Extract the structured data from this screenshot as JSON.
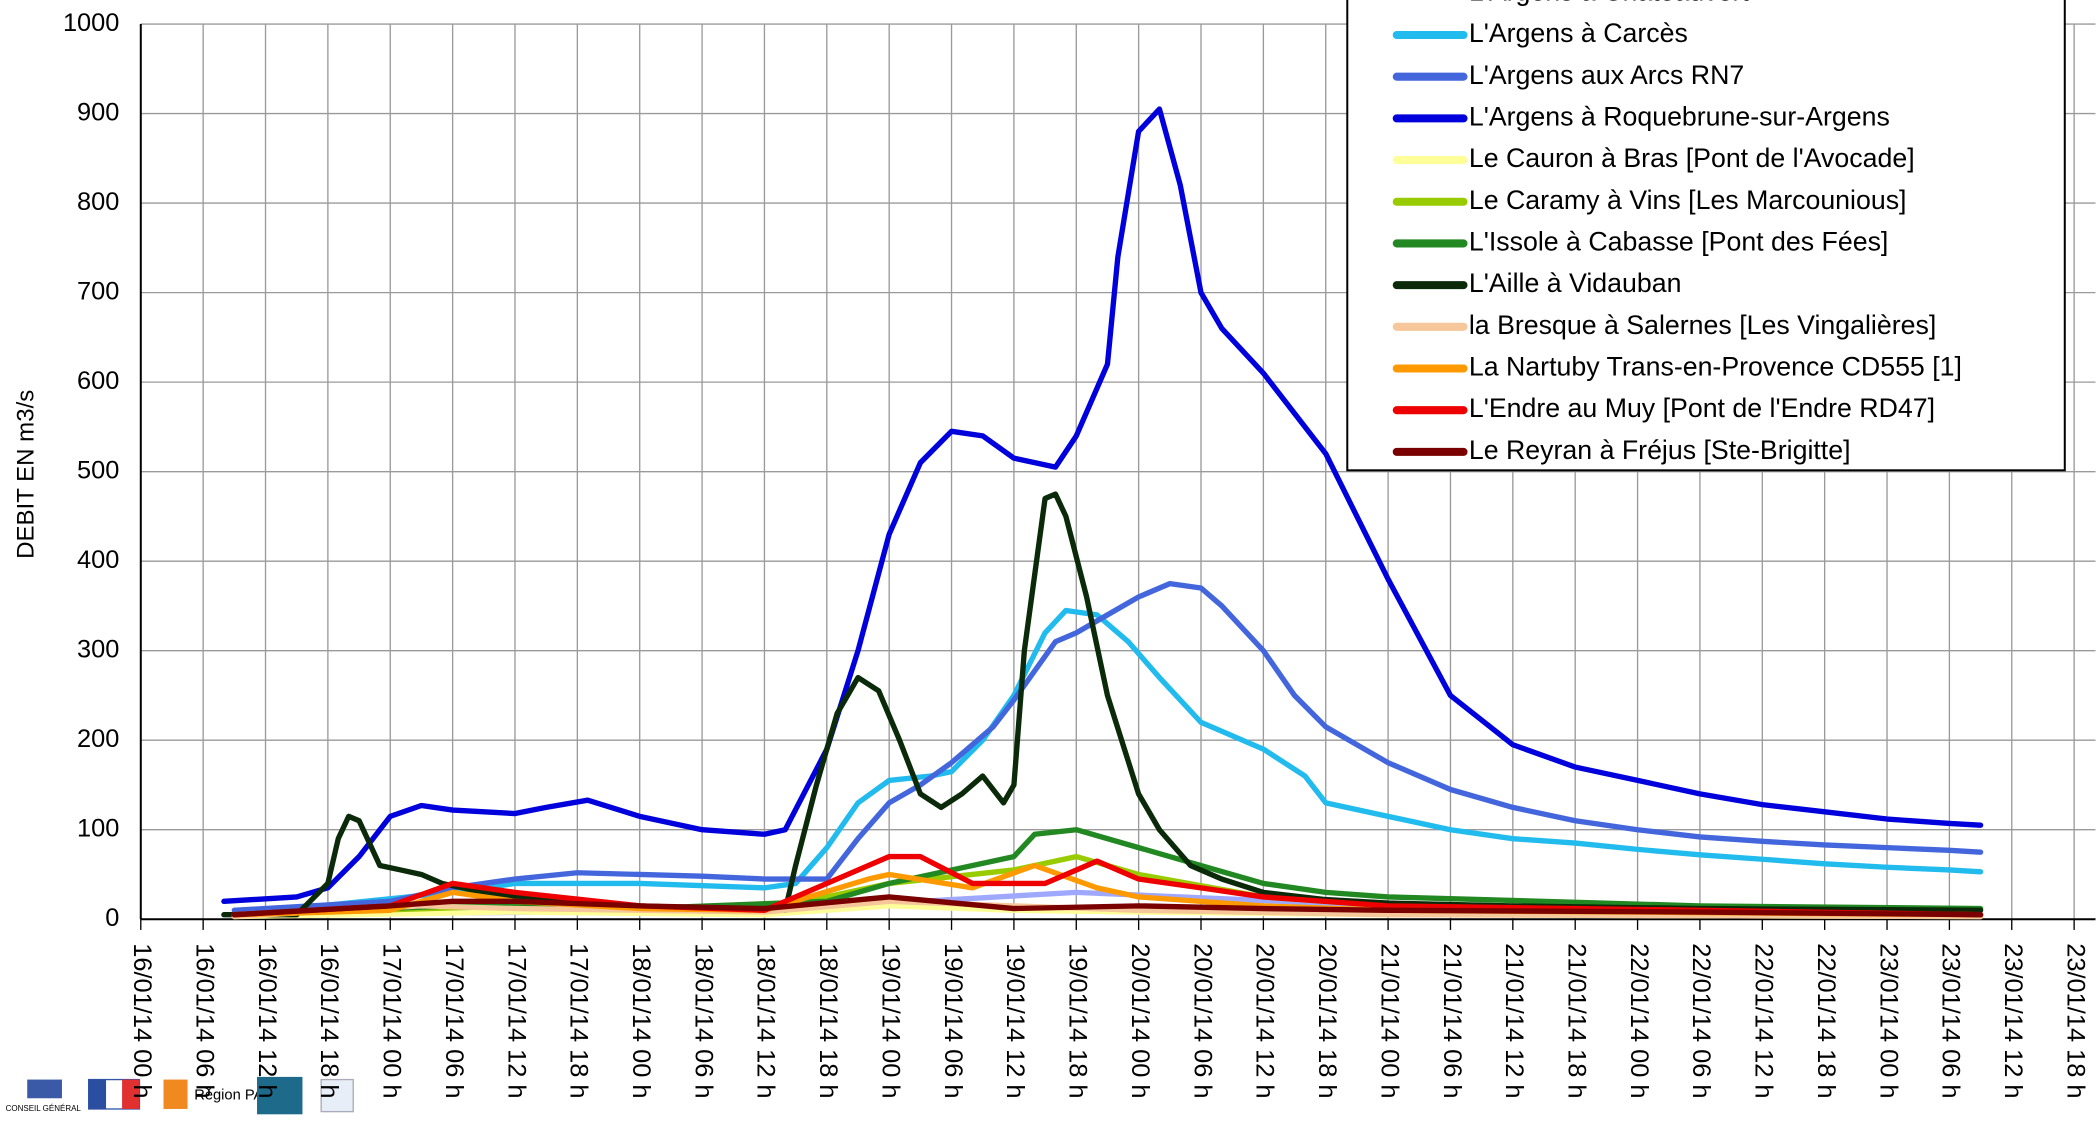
{
  "chart_data": {
    "type": "line",
    "y_label": "DEBIT EN m3/s",
    "xlim": [
      "16/01/14 00 h",
      "23/01/14 18 h"
    ],
    "xticks": [
      "16/01/14 00 h",
      "16/01/14 06 h",
      "16/01/14 12 h",
      "16/01/14 18 h",
      "17/01/14 00 h",
      "17/01/14 06 h",
      "17/01/14 12 h",
      "17/01/14 18 h",
      "18/01/14 00 h",
      "18/01/14 06 h",
      "18/01/14 12 h",
      "18/01/14 18 h",
      "19/01/14 00 h",
      "19/01/14 06 h",
      "19/01/14 12 h",
      "19/01/14 18 h",
      "20/01/14 00 h",
      "20/01/14 06 h",
      "20/01/14 12 h",
      "20/01/14 18 h",
      "21/01/14 00 h",
      "21/01/14 06 h",
      "21/01/14 12 h",
      "21/01/14 18 h",
      "22/01/14 00 h",
      "22/01/14 06 h",
      "22/01/14 12 h",
      "22/01/14 18 h",
      "23/01/14 00 h",
      "23/01/14 06 h",
      "23/01/14 12 h",
      "23/01/14 18 h"
    ],
    "ylim": [
      0,
      1000
    ],
    "yticks": [
      0,
      100,
      200,
      300,
      400,
      500,
      600,
      700,
      800,
      900,
      1000
    ],
    "grid": true,
    "legend": "top-right",
    "series": [
      {
        "name": "L'Argens à Châteauvert",
        "color": "#9fa8ff",
        "x": [
          "16/01/14 09 h",
          "18/01/14 12 h",
          "19/01/14 18 h",
          "21/01/14 00 h",
          "23/01/14 09 h"
        ],
        "values": [
          5,
          10,
          30,
          15,
          5
        ]
      },
      {
        "name": "L'Argens à Carcès",
        "color": "#22bbee",
        "x": [
          "16/01/14 09 h",
          "17/01/14 06 h",
          "17/01/14 12 h",
          "18/01/14 00 h",
          "18/01/14 12 h",
          "18/01/14 15 h",
          "18/01/14 18 h",
          "18/01/14 21 h",
          "19/01/14 00 h",
          "19/01/14 04 h",
          "19/01/14 06 h",
          "19/01/14 09 h",
          "19/01/14 12 h",
          "19/01/14 15 h",
          "19/01/14 17 h",
          "19/01/14 20 h",
          "19/01/14 23 h",
          "20/01/14 02 h",
          "20/01/14 06 h",
          "20/01/14 12 h",
          "20/01/14 16 h",
          "20/01/14 18 h",
          "21/01/14 00 h",
          "21/01/14 06 h",
          "21/01/14 12 h",
          "21/01/14 18 h",
          "22/01/14 00 h",
          "22/01/14 06 h",
          "22/01/14 12 h",
          "22/01/14 18 h",
          "23/01/14 00 h",
          "23/01/14 06 h",
          "23/01/14 09 h"
        ],
        "values": [
          5,
          30,
          40,
          40,
          35,
          40,
          80,
          130,
          155,
          160,
          165,
          200,
          250,
          320,
          345,
          340,
          310,
          270,
          220,
          190,
          160,
          130,
          115,
          100,
          90,
          85,
          78,
          72,
          67,
          62,
          58,
          55,
          53
        ]
      },
      {
        "name": "L'Argens aux Arcs RN7",
        "color": "#4466dd",
        "x": [
          "16/01/14 09 h",
          "17/01/14 00 h",
          "17/01/14 06 h",
          "17/01/14 12 h",
          "17/01/14 18 h",
          "18/01/14 00 h",
          "18/01/14 06 h",
          "18/01/14 12 h",
          "18/01/14 15 h",
          "18/01/14 18 h",
          "18/01/14 21 h",
          "19/01/14 00 h",
          "19/01/14 03 h",
          "19/01/14 06 h",
          "19/01/14 10 h",
          "19/01/14 12 h",
          "19/01/14 16 h",
          "19/01/14 18 h",
          "19/01/14 21 h",
          "20/01/14 00 h",
          "20/01/14 03 h",
          "20/01/14 06 h",
          "20/01/14 08 h",
          "20/01/14 12 h",
          "20/01/14 15 h",
          "20/01/14 18 h",
          "21/01/14 00 h",
          "21/01/14 06 h",
          "21/01/14 12 h",
          "21/01/14 18 h",
          "22/01/14 00 h",
          "22/01/14 06 h",
          "22/01/14 12 h",
          "22/01/14 18 h",
          "23/01/14 00 h",
          "23/01/14 06 h",
          "23/01/14 09 h"
        ],
        "values": [
          10,
          20,
          35,
          45,
          52,
          50,
          48,
          45,
          45,
          45,
          90,
          130,
          150,
          175,
          215,
          245,
          310,
          320,
          340,
          360,
          375,
          370,
          350,
          300,
          250,
          215,
          175,
          145,
          125,
          110,
          100,
          92,
          87,
          83,
          80,
          77,
          75
        ]
      },
      {
        "name": "L'Argens à Roquebrune-sur-Argens",
        "color": "#0000dd",
        "x": [
          "16/01/14 08 h",
          "16/01/14 15 h",
          "16/01/14 18 h",
          "16/01/14 21 h",
          "17/01/14 00 h",
          "17/01/14 03 h",
          "17/01/14 06 h",
          "17/01/14 12 h",
          "17/01/14 15 h",
          "17/01/14 19 h",
          "18/01/14 00 h",
          "18/01/14 06 h",
          "18/01/14 12 h",
          "18/01/14 14 h",
          "18/01/14 18 h",
          "18/01/14 21 h",
          "19/01/14 00 h",
          "19/01/14 03 h",
          "19/01/14 06 h",
          "19/01/14 09 h",
          "19/01/14 12 h",
          "19/01/14 16 h",
          "19/01/14 18 h",
          "19/01/14 21 h",
          "19/01/14 22 h",
          "20/01/14 00 h",
          "20/01/14 02 h",
          "20/01/14 04 h",
          "20/01/14 06 h",
          "20/01/14 08 h",
          "20/01/14 12 h",
          "20/01/14 18 h",
          "21/01/14 00 h",
          "21/01/14 06 h",
          "21/01/14 12 h",
          "21/01/14 18 h",
          "22/01/14 00 h",
          "22/01/14 06 h",
          "22/01/14 12 h",
          "22/01/14 18 h",
          "23/01/14 00 h",
          "23/01/14 06 h",
          "23/01/14 09 h"
        ],
        "values": [
          20,
          25,
          35,
          70,
          115,
          127,
          122,
          118,
          125,
          133,
          115,
          100,
          95,
          100,
          190,
          300,
          430,
          510,
          545,
          540,
          515,
          505,
          540,
          620,
          740,
          880,
          905,
          820,
          700,
          660,
          610,
          520,
          380,
          250,
          195,
          170,
          155,
          140,
          128,
          120,
          112,
          107,
          105
        ]
      },
      {
        "name": "Le Cauron à Bras [Pont de l'Avocade]",
        "color": "#ffff99",
        "x": [
          "16/01/14 09 h",
          "17/01/14 12 h",
          "18/01/14 12 h",
          "19/01/14 00 h",
          "19/01/14 12 h",
          "20/01/14 00 h",
          "21/01/14 00 h",
          "23/01/14 09 h"
        ],
        "values": [
          3,
          8,
          5,
          15,
          10,
          8,
          5,
          3
        ]
      },
      {
        "name": "Le Caramy à Vins [Les Marcounious]",
        "color": "#99cc00",
        "x": [
          "16/01/14 09 h",
          "17/01/14 12 h",
          "18/01/14 12 h",
          "19/01/14 00 h",
          "19/01/14 12 h",
          "19/01/14 18 h",
          "20/01/14 00 h",
          "20/01/14 12 h",
          "21/01/14 00 h",
          "22/01/14 06 h",
          "23/01/14 09 h"
        ],
        "values": [
          5,
          15,
          10,
          40,
          55,
          70,
          50,
          25,
          15,
          8,
          5
        ]
      },
      {
        "name": "L'Issole à Cabasse [Pont des Fées]",
        "color": "#228822",
        "x": [
          "16/01/14 09 h",
          "17/01/14 06 h",
          "18/01/14 00 h",
          "18/01/14 18 h",
          "19/01/14 00 h",
          "19/01/14 12 h",
          "19/01/14 14 h",
          "19/01/14 18 h",
          "20/01/14 00 h",
          "20/01/14 06 h",
          "20/01/14 12 h",
          "20/01/14 18 h",
          "21/01/14 00 h",
          "22/01/14 06 h",
          "23/01/14 09 h"
        ],
        "values": [
          5,
          15,
          12,
          20,
          40,
          70,
          95,
          100,
          80,
          60,
          40,
          30,
          25,
          15,
          12
        ]
      },
      {
        "name": "L'Aille à Vidauban",
        "color": "#0a2a0a",
        "x": [
          "16/01/14 08 h",
          "16/01/14 15 h",
          "16/01/14 18 h",
          "16/01/14 19 h",
          "16/01/14 20 h",
          "16/01/14 21 h",
          "16/01/14 23 h",
          "17/01/14 01 h",
          "17/01/14 03 h",
          "17/01/14 05 h",
          "17/01/14 09 h",
          "17/01/14 12 h",
          "18/01/14 00 h",
          "18/01/14 12 h",
          "18/01/14 14 h",
          "18/01/14 15 h",
          "18/01/14 17 h",
          "18/01/14 19 h",
          "18/01/14 21 h",
          "18/01/14 23 h",
          "19/01/14 01 h",
          "19/01/14 03 h",
          "19/01/14 05 h",
          "19/01/14 07 h",
          "19/01/14 09 h",
          "19/01/14 11 h",
          "19/01/14 12 h",
          "19/01/14 13 h",
          "19/01/14 15 h",
          "19/01/14 16 h",
          "19/01/14 17 h",
          "19/01/14 19 h",
          "19/01/14 21 h",
          "20/01/14 00 h",
          "20/01/14 02 h",
          "20/01/14 05 h",
          "20/01/14 08 h",
          "20/01/14 12 h",
          "20/01/14 18 h",
          "21/01/14 00 h",
          "21/01/14 12 h",
          "22/01/14 06 h",
          "23/01/14 09 h"
        ],
        "values": [
          5,
          5,
          40,
          90,
          115,
          110,
          60,
          55,
          50,
          40,
          30,
          25,
          15,
          10,
          10,
          60,
          150,
          230,
          270,
          255,
          200,
          140,
          125,
          140,
          160,
          130,
          150,
          300,
          470,
          475,
          450,
          360,
          250,
          140,
          100,
          60,
          45,
          30,
          22,
          18,
          15,
          12,
          10
        ]
      },
      {
        "name": "la Bresque à Salernes [Les Vingalières]",
        "color": "#f5c79a",
        "x": [
          "16/01/14 09 h",
          "17/01/14 03 h",
          "17/01/14 12 h",
          "18/01/14 12 h",
          "19/01/14 00 h",
          "19/01/14 12 h",
          "20/01/14 00 h",
          "21/01/14 00 h",
          "23/01/14 09 h"
        ],
        "values": [
          3,
          15,
          12,
          8,
          20,
          15,
          10,
          5,
          3
        ]
      },
      {
        "name": "La Nartuby Trans-en-Provence CD555 [1]",
        "color": "#ff9900",
        "x": [
          "16/01/14 09 h",
          "17/01/14 00 h",
          "17/01/14 06 h",
          "17/01/14 12 h",
          "18/01/14 00 h",
          "18/01/14 12 h",
          "18/01/14 22 h",
          "19/01/14 00 h",
          "19/01/14 08 h",
          "19/01/14 14 h",
          "19/01/14 20 h",
          "20/01/14 00 h",
          "20/01/14 12 h",
          "21/01/14 00 h",
          "23/01/14 09 h"
        ],
        "values": [
          5,
          10,
          30,
          20,
          12,
          10,
          45,
          50,
          35,
          60,
          35,
          25,
          15,
          10,
          5
        ]
      },
      {
        "name": "L'Endre au Muy [Pont de l'Endre RD47]",
        "color": "#ee0000",
        "x": [
          "16/01/14 09 h",
          "17/01/14 00 h",
          "17/01/14 06 h",
          "17/01/14 12 h",
          "18/01/14 00 h",
          "18/01/14 12 h",
          "18/01/14 18 h",
          "19/01/14 00 h",
          "19/01/14 03 h",
          "19/01/14 08 h",
          "19/01/14 15 h",
          "19/01/14 20 h",
          "20/01/14 00 h",
          "20/01/14 06 h",
          "20/01/14 12 h",
          "21/01/14 00 h",
          "22/01/14 06 h",
          "23/01/14 09 h"
        ],
        "values": [
          5,
          15,
          40,
          30,
          15,
          10,
          40,
          70,
          70,
          40,
          40,
          65,
          45,
          35,
          25,
          15,
          10,
          5
        ]
      },
      {
        "name": "Le Reyran à Fréjus [Ste-Brigitte]",
        "color": "#7a0000",
        "x": [
          "16/01/14 09 h",
          "17/01/14 00 h",
          "17/01/14 06 h",
          "17/01/14 12 h",
          "18/01/14 00 h",
          "18/01/14 12 h",
          "19/01/14 00 h",
          "19/01/14 12 h",
          "20/01/14 00 h",
          "20/01/14 12 h",
          "21/01/14 00 h",
          "22/01/14 06 h",
          "23/01/14 09 h"
        ],
        "values": [
          5,
          15,
          20,
          20,
          15,
          12,
          25,
          12,
          15,
          12,
          10,
          8,
          5
        ]
      }
    ]
  },
  "logos": [
    "CONSEIL GÉNÉRAL",
    "Région PACA"
  ]
}
